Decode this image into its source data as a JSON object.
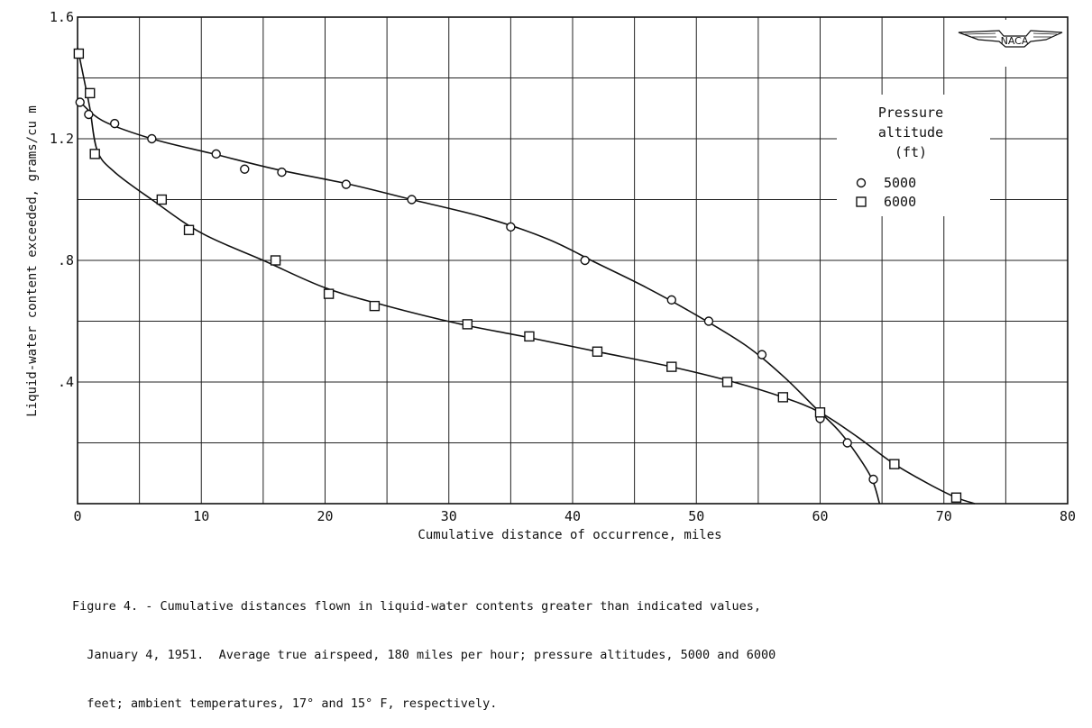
{
  "chart_data": {
    "type": "scatter",
    "title": "",
    "xlabel": "Cumulative distance of occurrence, miles",
    "ylabel": "Liquid-water content exceeded, grams/cu m",
    "xlim": [
      0,
      80
    ],
    "ylim": [
      0,
      1.6
    ],
    "x_ticks": [
      0,
      10,
      20,
      30,
      40,
      50,
      60,
      70,
      80
    ],
    "x_tick_labels": [
      "0",
      "10",
      "20",
      "30",
      "40",
      "50",
      "60",
      "70",
      "80"
    ],
    "y_ticks": [
      0.4,
      0.8,
      1.2,
      1.6
    ],
    "y_tick_labels": [
      ".4",
      ".8",
      "1.2",
      "1.6"
    ],
    "grid": true,
    "legend": {
      "title_lines": [
        "Pressure",
        "altitude",
        "(ft)"
      ],
      "placement": "right"
    },
    "series": [
      {
        "name": "5000",
        "marker": "circle",
        "points": [
          [
            0.2,
            1.32
          ],
          [
            0.9,
            1.28
          ],
          [
            3.0,
            1.25
          ],
          [
            6.0,
            1.2
          ],
          [
            11.2,
            1.15
          ],
          [
            13.5,
            1.1
          ],
          [
            16.5,
            1.09
          ],
          [
            21.7,
            1.05
          ],
          [
            27.0,
            1.0
          ],
          [
            35.0,
            0.91
          ],
          [
            41.0,
            0.8
          ],
          [
            48.0,
            0.67
          ],
          [
            51.0,
            0.6
          ],
          [
            55.3,
            0.49
          ],
          [
            60.0,
            0.28
          ],
          [
            62.2,
            0.2
          ],
          [
            64.3,
            0.08
          ]
        ],
        "curve": [
          [
            0,
            1.33
          ],
          [
            2,
            1.26
          ],
          [
            6,
            1.2
          ],
          [
            11,
            1.15
          ],
          [
            16,
            1.1
          ],
          [
            22,
            1.05
          ],
          [
            27,
            1.0
          ],
          [
            33,
            0.94
          ],
          [
            38,
            0.87
          ],
          [
            42,
            0.79
          ],
          [
            46,
            0.71
          ],
          [
            50,
            0.62
          ],
          [
            54,
            0.52
          ],
          [
            57,
            0.42
          ],
          [
            59.5,
            0.32
          ],
          [
            61.5,
            0.24
          ],
          [
            63,
            0.16
          ],
          [
            64.2,
            0.08
          ],
          [
            64.8,
            0.0
          ]
        ]
      },
      {
        "name": "6000",
        "marker": "square",
        "points": [
          [
            0.1,
            1.48
          ],
          [
            1.0,
            1.35
          ],
          [
            1.4,
            1.15
          ],
          [
            6.8,
            1.0
          ],
          [
            9.0,
            0.9
          ],
          [
            16.0,
            0.8
          ],
          [
            20.3,
            0.69
          ],
          [
            24.0,
            0.65
          ],
          [
            31.5,
            0.59
          ],
          [
            36.5,
            0.55
          ],
          [
            42.0,
            0.5
          ],
          [
            48.0,
            0.45
          ],
          [
            52.5,
            0.4
          ],
          [
            57.0,
            0.35
          ],
          [
            60.0,
            0.3
          ],
          [
            66.0,
            0.13
          ],
          [
            71.0,
            0.02
          ]
        ],
        "curve": [
          [
            0,
            1.5
          ],
          [
            0.5,
            1.4
          ],
          [
            1.0,
            1.3
          ],
          [
            1.6,
            1.16
          ],
          [
            3,
            1.09
          ],
          [
            6,
            1.0
          ],
          [
            10,
            0.89
          ],
          [
            15,
            0.8
          ],
          [
            20,
            0.71
          ],
          [
            25,
            0.65
          ],
          [
            31,
            0.59
          ],
          [
            36,
            0.55
          ],
          [
            42,
            0.5
          ],
          [
            48,
            0.45
          ],
          [
            53,
            0.4
          ],
          [
            57,
            0.35
          ],
          [
            60,
            0.3
          ],
          [
            63,
            0.22
          ],
          [
            66,
            0.13
          ],
          [
            69,
            0.06
          ],
          [
            71,
            0.02
          ],
          [
            72.5,
            0.0
          ]
        ]
      }
    ]
  },
  "caption_lines": [
    "Figure 4. - Cumulative distances flown in liquid-water contents greater than indicated values,",
    "  January 4, 1951.  Average true airspeed, 180 miles per hour; pressure altitudes, 5000 and 6000",
    "  feet; ambient temperatures, 17° and 15° F, respectively."
  ],
  "logo": {
    "text": "NACA",
    "icon": "naca-wings-logo-icon"
  }
}
